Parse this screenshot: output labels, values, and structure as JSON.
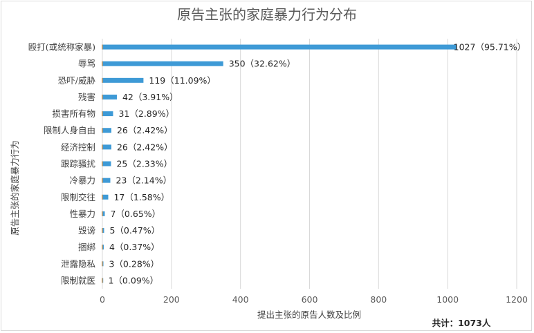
{
  "chart_data": {
    "type": "bar",
    "orientation": "horizontal",
    "title": "原告主张的家庭暴力行为分布",
    "xlabel": "提出主张的原告人数及比例",
    "ylabel": "原告主张的家庭暴力行为",
    "xlim": [
      0,
      1200
    ],
    "xticks": [
      "0",
      "200",
      "400",
      "600",
      "800",
      "1000",
      "1200"
    ],
    "grid": true,
    "bar_color": "#3e9ad6",
    "categories": [
      "殴打(或统称家暴)",
      "辱骂",
      "恐吓/威胁",
      "残害",
      "损害所有物",
      "限制人身自由",
      "经济控制",
      "跟踪骚扰",
      "冷暴力",
      "限制交往",
      "性暴力",
      "毁谤",
      "捆绑",
      "泄露隐私",
      "限制就医"
    ],
    "values": [
      1027,
      350,
      119,
      42,
      31,
      26,
      26,
      25,
      23,
      17,
      7,
      5,
      4,
      3,
      1
    ],
    "data_labels": [
      "1027（95.71%）",
      "350（32.62%）",
      "119（11.09%）",
      "42（3.91%）",
      "31（2.89%）",
      "26（2.42%）",
      "26（2.42%）",
      "25（2.33%）",
      "23（2.14%）",
      "17（1.58%）",
      "7（0.65%）",
      "5（0.47%）",
      "4（0.37%）",
      "3（0.28%）",
      "1（0.09%）"
    ],
    "annotation": "共计：1073人"
  }
}
